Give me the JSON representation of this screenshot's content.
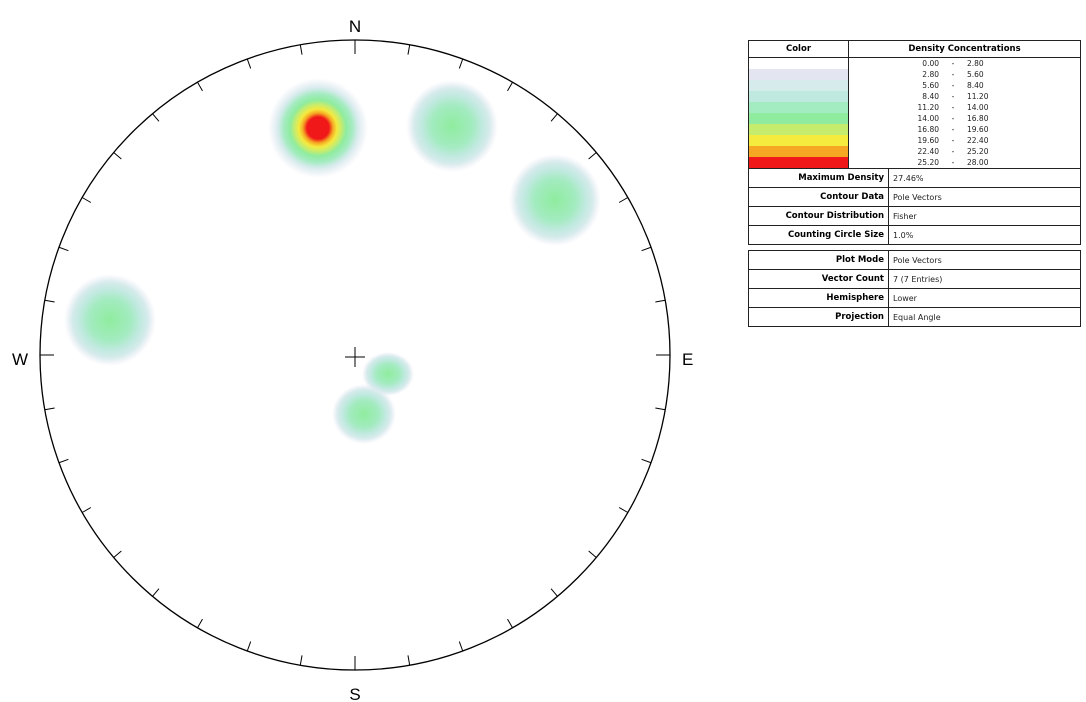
{
  "directions": {
    "north": "N",
    "east": "E",
    "south": "S",
    "west": "W"
  },
  "legend": {
    "color_header": "Color",
    "density_header": "Density Concentrations",
    "ranges": [
      {
        "min": "0.00",
        "max": "2.80",
        "color": "#ffffff"
      },
      {
        "min": "2.80",
        "max": "5.60",
        "color": "#e3e6f1"
      },
      {
        "min": "5.60",
        "max": "8.40",
        "color": "#d6ebec"
      },
      {
        "min": "8.40",
        "max": "11.20",
        "color": "#bfe9de"
      },
      {
        "min": "11.20",
        "max": "14.00",
        "color": "#a3ebc0"
      },
      {
        "min": "14.00",
        "max": "16.80",
        "color": "#8fec9e"
      },
      {
        "min": "16.80",
        "max": "19.60",
        "color": "#c6ec6e"
      },
      {
        "min": "19.60",
        "max": "22.40",
        "color": "#f5ea3e"
      },
      {
        "min": "22.40",
        "max": "25.20",
        "color": "#f5a623"
      },
      {
        "min": "25.20",
        "max": "28.00",
        "color": "#f01818"
      }
    ],
    "properties": [
      {
        "name": "Maximum Density",
        "value": "27.46%"
      },
      {
        "name": "Contour Data",
        "value": "Pole Vectors"
      },
      {
        "name": "Contour Distribution",
        "value": "Fisher"
      },
      {
        "name": "Counting Circle Size",
        "value": "1.0%"
      }
    ],
    "plot_properties": [
      {
        "name": "Plot Mode",
        "value": "Pole Vectors"
      },
      {
        "name": "Vector Count",
        "value": "7 (7 Entries)"
      },
      {
        "name": "Hemisphere",
        "value": "Lower"
      },
      {
        "name": "Projection",
        "value": "Equal Angle"
      }
    ]
  }
}
